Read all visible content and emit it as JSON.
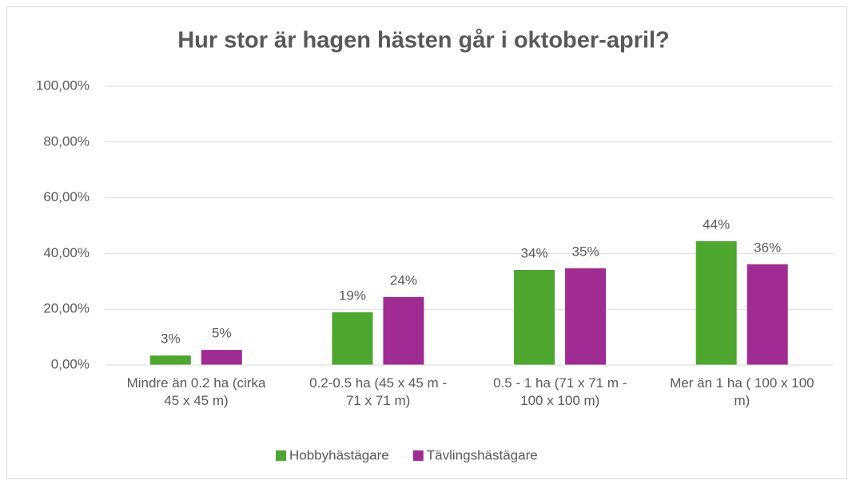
{
  "chart_data": {
    "type": "bar",
    "title": "Hur stor är hagen hästen går i oktober-april?",
    "categories": [
      "Mindre än 0.2 ha (cirka\n45 x 45 m)",
      "0.2-0.5 ha (45 x 45 m -\n71 x 71 m)",
      "0.5 - 1 ha (71 x 71 m -\n100 x 100 m)",
      "Mer än 1 ha ( 100 x 100\nm)"
    ],
    "series": [
      {
        "name": "Hobbyhästägare",
        "color": "#4ea72e",
        "values": [
          3.4,
          18.9,
          34.1,
          44.4
        ],
        "value_labels": [
          "3%",
          "19%",
          "34%",
          "44%"
        ]
      },
      {
        "name": "Tävlingshästägare",
        "color": "#a02b93",
        "values": [
          5.4,
          24.4,
          34.7,
          36.1
        ],
        "value_labels": [
          "5%",
          "24%",
          "35%",
          "36%"
        ]
      }
    ],
    "ylim": [
      0,
      100
    ],
    "yticks": [
      {
        "value": 0,
        "label": "0,00%"
      },
      {
        "value": 20,
        "label": "20,00%"
      },
      {
        "value": 40,
        "label": "40,00%"
      },
      {
        "value": 60,
        "label": "60,00%"
      },
      {
        "value": 80,
        "label": "80,00%"
      },
      {
        "value": 100,
        "label": "100,00%"
      }
    ],
    "grid": true,
    "legend": "bottom"
  }
}
